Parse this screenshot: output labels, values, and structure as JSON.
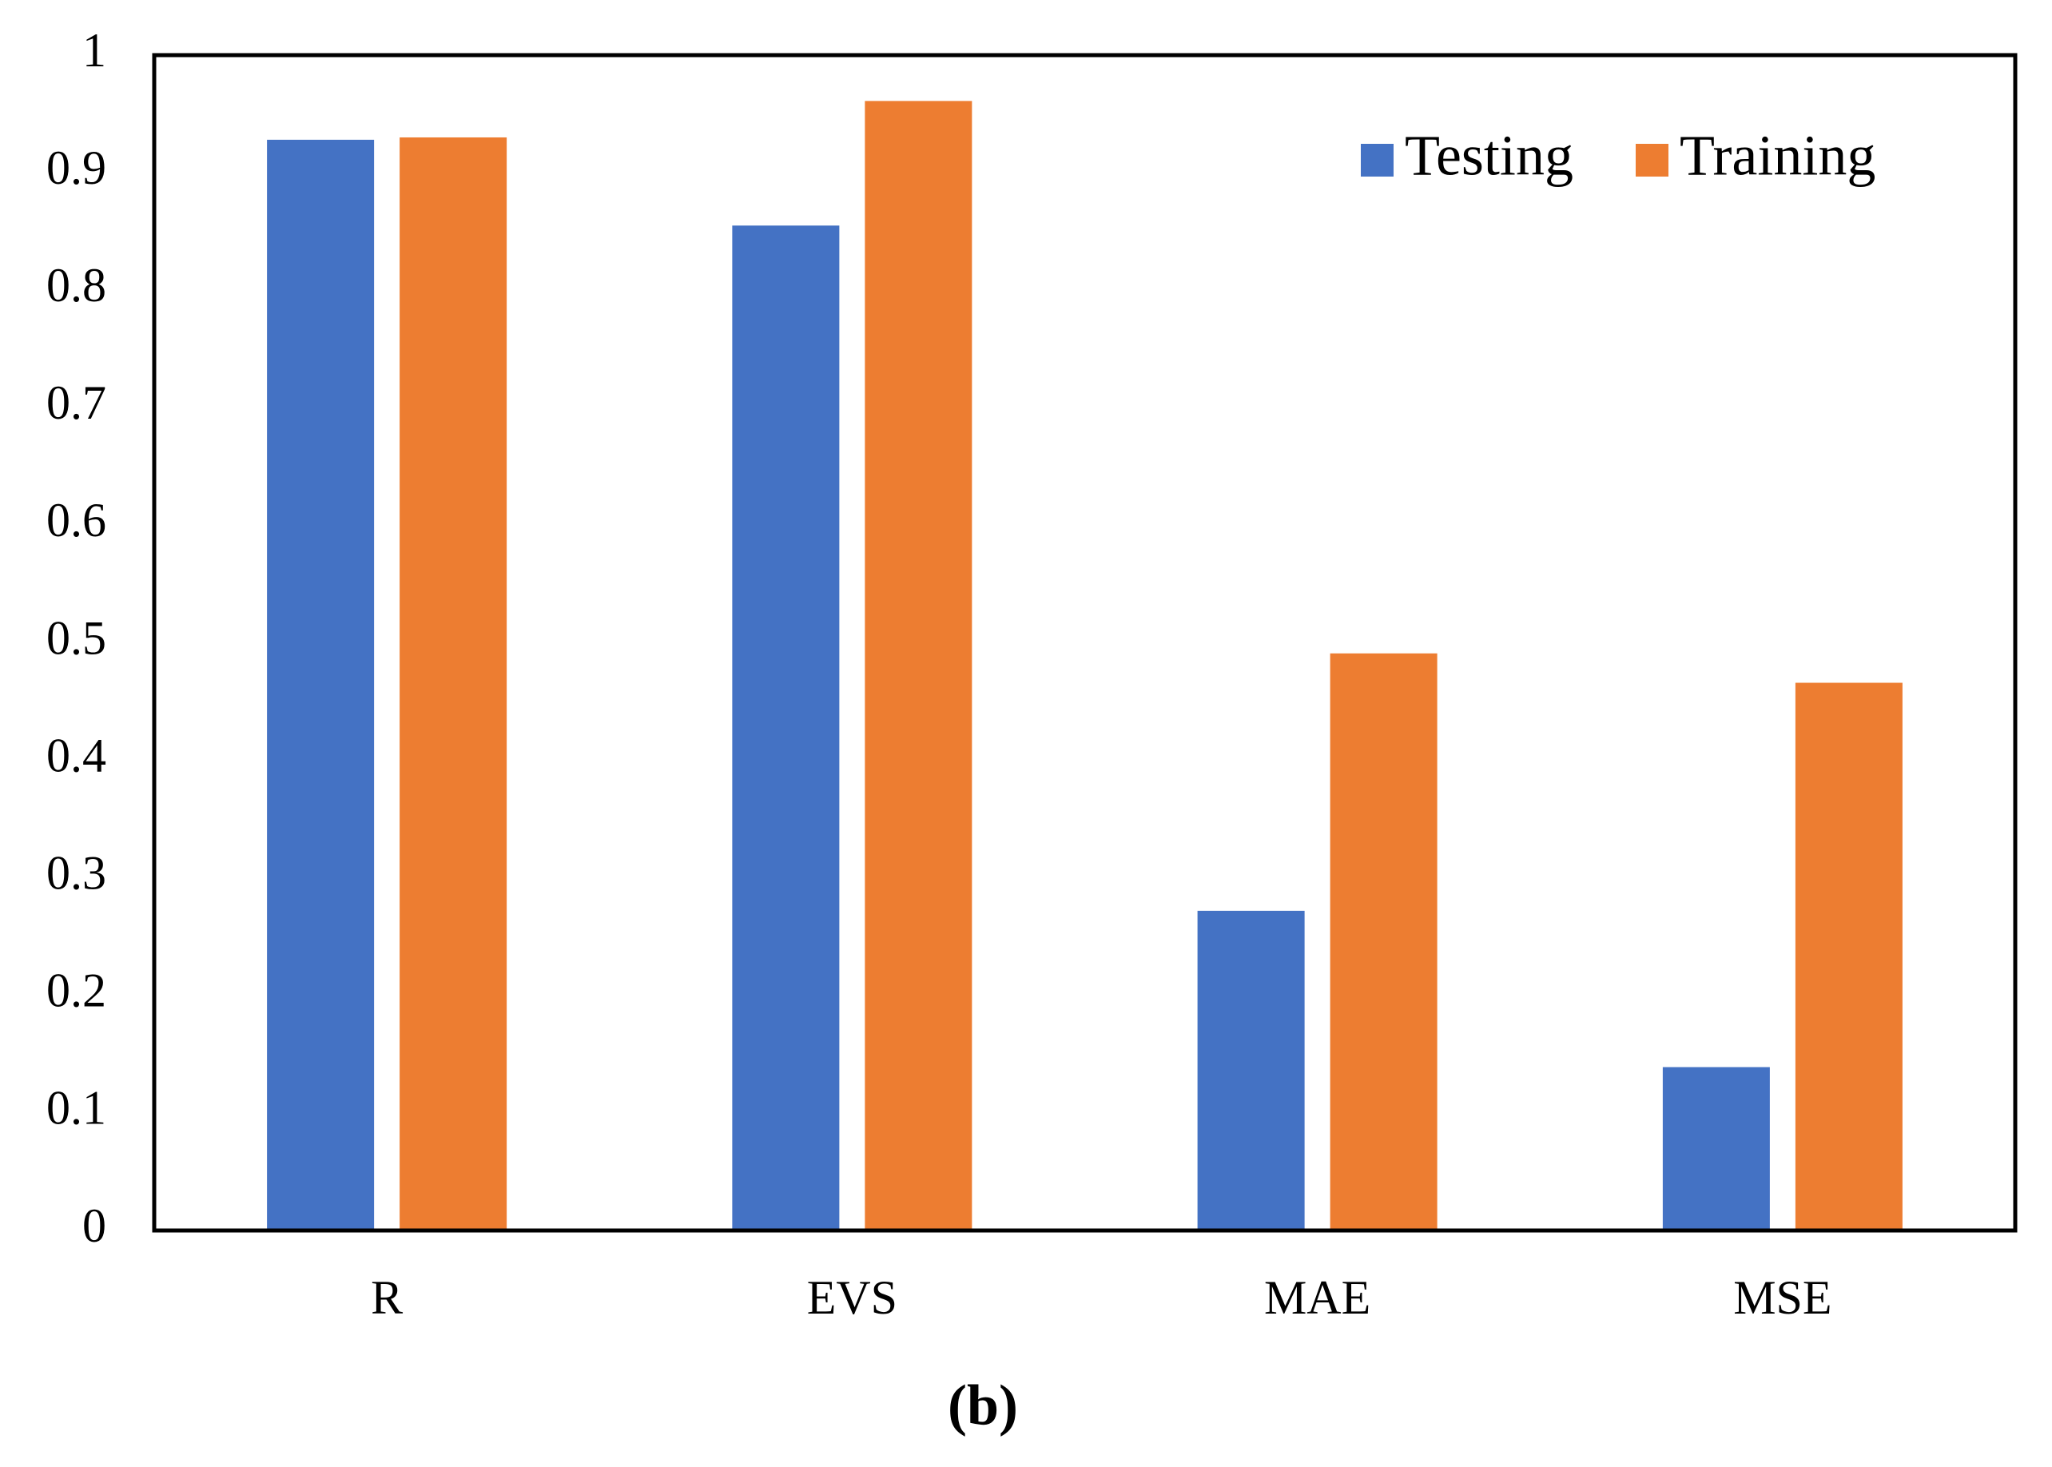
{
  "chart_data": {
    "type": "bar",
    "caption": "(b)",
    "categories": [
      "R",
      "EVS",
      "MAE",
      "MSE"
    ],
    "series": [
      {
        "name": "Testing",
        "color": "#4472c4",
        "values": [
          0.928,
          0.855,
          0.272,
          0.139
        ]
      },
      {
        "name": "Training",
        "color": "#ed7d31",
        "values": [
          0.93,
          0.961,
          0.491,
          0.466
        ]
      }
    ],
    "ylim": [
      0,
      1
    ],
    "yticks": [
      0,
      0.1,
      0.2,
      0.3,
      0.4,
      0.5,
      0.6,
      0.7,
      0.8,
      0.9,
      1
    ],
    "grid": false,
    "legend": "top-right"
  }
}
